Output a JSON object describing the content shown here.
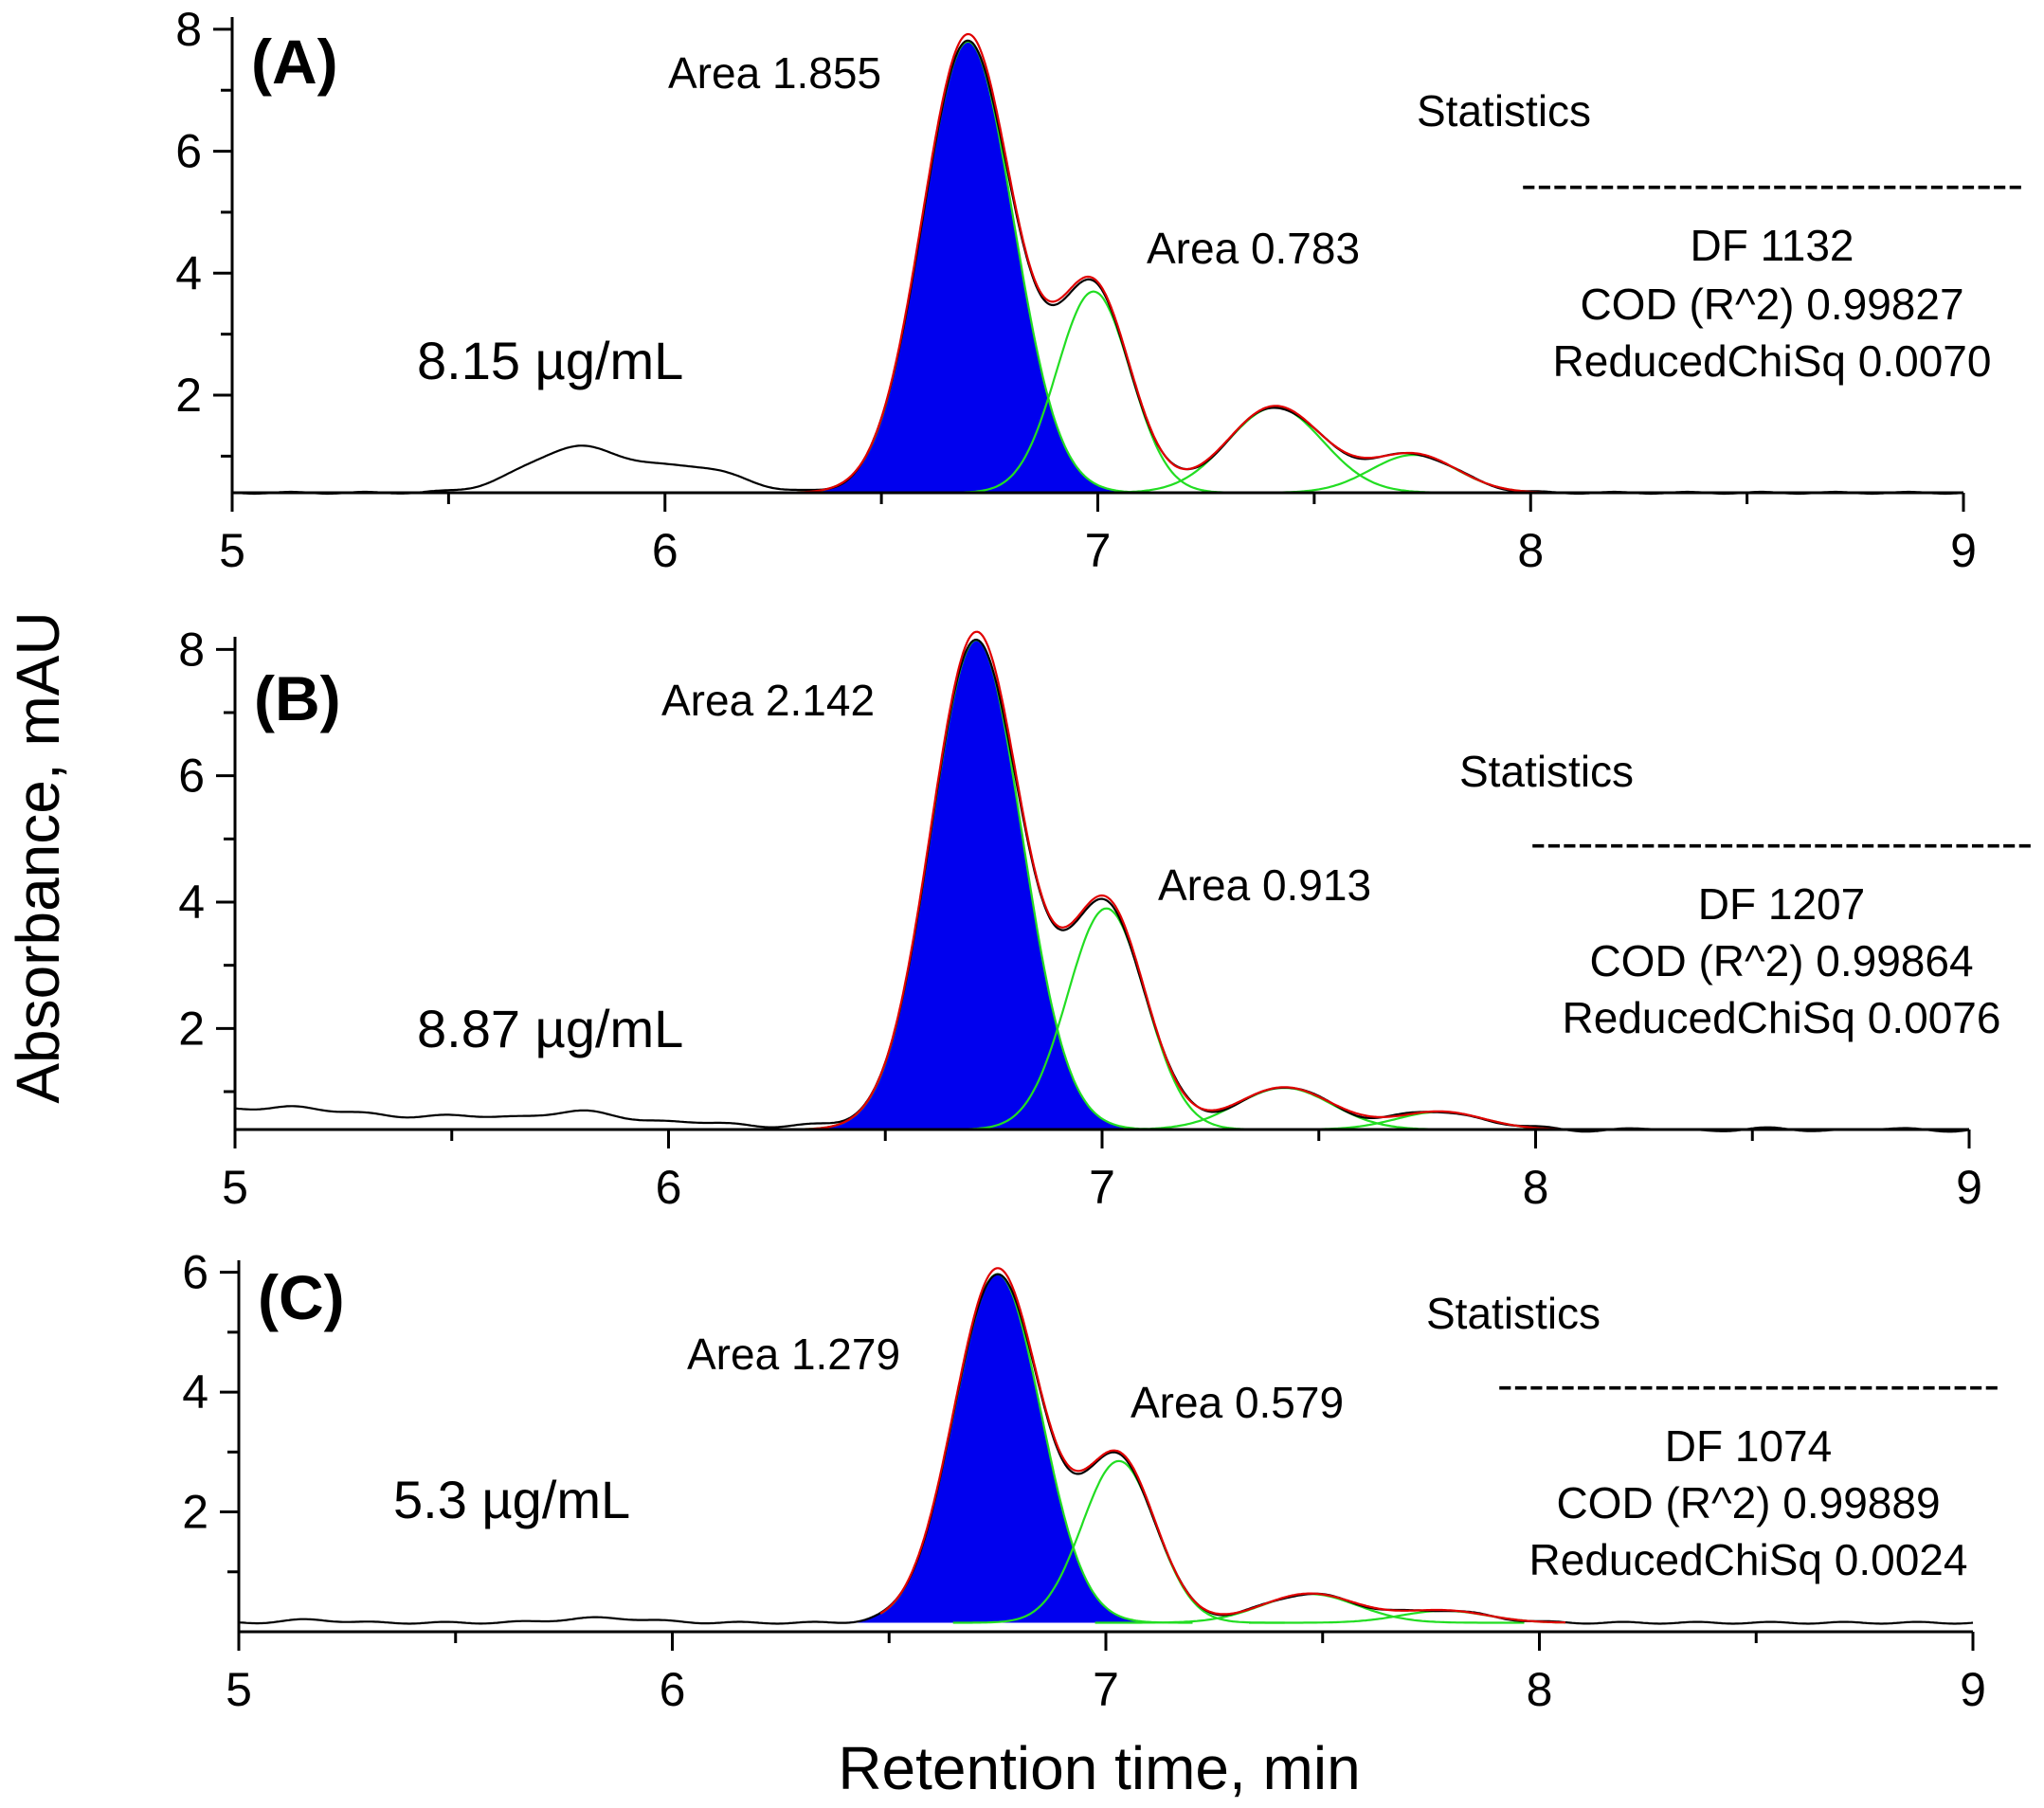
{
  "chart_data": [
    {
      "type": "line",
      "panel": "(A)",
      "concentration": "8.15 µg/mL",
      "xlim": [
        5,
        9
      ],
      "ylim": [
        0.4,
        8.2
      ],
      "x_ticks": [
        5,
        6,
        7,
        8,
        9
      ],
      "y_ticks": [
        2,
        4,
        6,
        8
      ],
      "baseline": 0.4,
      "fit_range": [
        6.27,
        8.18
      ],
      "peaks": [
        {
          "center": 6.7,
          "height": 7.4,
          "sigma": 0.105,
          "filled": true,
          "area_label": "Area 1.855"
        },
        {
          "center": 6.99,
          "height": 3.3,
          "sigma": 0.085,
          "filled": false,
          "area_label": "Area 0.783"
        },
        {
          "center": 7.41,
          "height": 1.4,
          "sigma": 0.11,
          "filled": false
        },
        {
          "center": 7.73,
          "height": 0.62,
          "sigma": 0.1,
          "filled": false
        }
      ],
      "pre_peaks": [
        {
          "center": 5.8,
          "height": 0.75,
          "sigma": 0.12
        },
        {
          "center": 6.08,
          "height": 0.38,
          "sigma": 0.1
        }
      ],
      "statistics": {
        "title": "Statistics",
        "rule": "--------------------------------",
        "df": "DF 1132",
        "cod": "COD (R^2) 0.99827",
        "chisq": "ReducedChiSq  0.0070"
      }
    },
    {
      "type": "line",
      "panel": "(B)",
      "concentration": "8.87 µg/mL",
      "xlim": [
        5,
        9
      ],
      "ylim": [
        0.4,
        8.2
      ],
      "x_ticks": [
        5,
        6,
        7,
        8,
        9
      ],
      "y_ticks": [
        2,
        4,
        6,
        8
      ],
      "baseline": 0.4,
      "fit_range": [
        6.28,
        8.32
      ],
      "peaks": [
        {
          "center": 6.71,
          "height": 7.75,
          "sigma": 0.105,
          "filled": true,
          "area_label": "Area 2.142"
        },
        {
          "center": 7.01,
          "height": 3.5,
          "sigma": 0.09,
          "filled": false,
          "area_label": "Area 0.913"
        },
        {
          "center": 7.42,
          "height": 0.66,
          "sigma": 0.11,
          "filled": false
        },
        {
          "center": 7.78,
          "height": 0.28,
          "sigma": 0.1,
          "filled": false
        }
      ],
      "pre_peaks": [
        {
          "center": 5.13,
          "height": 0.1,
          "sigma": 0.06
        },
        {
          "center": 5.8,
          "height": 0.12,
          "sigma": 0.1
        }
      ],
      "base_extra": 0.3,
      "statistics": {
        "title": "Statistics",
        "rule": "--------------------------------",
        "df": "DF 1207",
        "cod": "COD (R^2)     0.99864",
        "chisq": "ReducedChiSq  0.0076"
      }
    },
    {
      "type": "line",
      "panel": "(C)",
      "concentration": "5.3 µg/mL",
      "xlim": [
        5,
        9
      ],
      "ylim": [
        0,
        6.2
      ],
      "x_ticks": [
        5,
        6,
        7,
        8,
        9
      ],
      "y_ticks": [
        2,
        4,
        6
      ],
      "baseline": 0.15,
      "fit_range": [
        6.48,
        8.06
      ],
      "peaks": [
        {
          "center": 6.75,
          "height": 5.82,
          "sigma": 0.1,
          "filled": true,
          "area_label": "Area 1.279"
        },
        {
          "center": 7.03,
          "height": 2.7,
          "sigma": 0.085,
          "filled": false,
          "area_label": "Area 0.579"
        },
        {
          "center": 7.47,
          "height": 0.48,
          "sigma": 0.11,
          "filled": false
        },
        {
          "center": 7.78,
          "height": 0.2,
          "sigma": 0.1,
          "filled": false
        }
      ],
      "pre_peaks": [
        {
          "center": 5.17,
          "height": 0.05,
          "sigma": 0.06
        },
        {
          "center": 5.84,
          "height": 0.08,
          "sigma": 0.1
        }
      ],
      "statistics": {
        "title": "Statistics",
        "rule": "--------------------------------",
        "df": "DF 1074",
        "cod": "COD (R^2) 0.99889",
        "chisq": "ReducedChiSq  0.0024"
      }
    }
  ],
  "ylabel": "Absorbance, mAU",
  "xlabel": "Retention time, min"
}
